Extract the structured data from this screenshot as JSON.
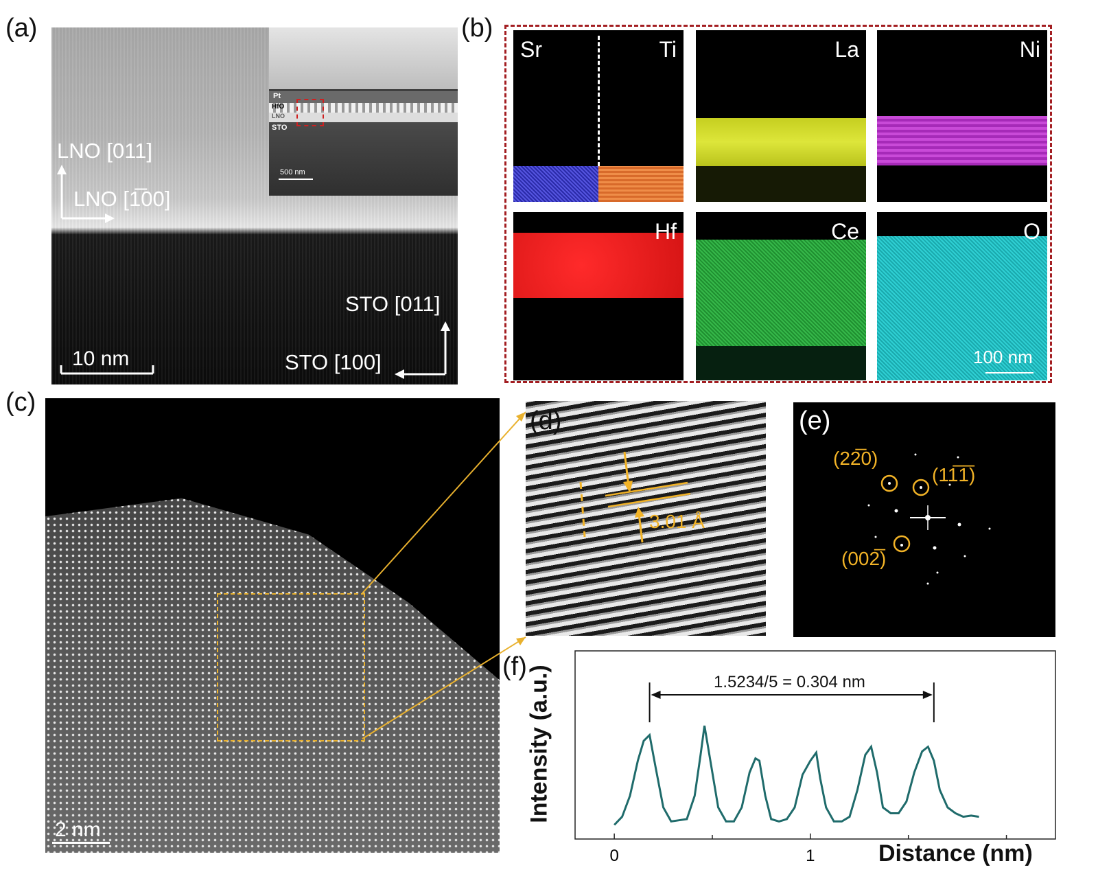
{
  "panels": {
    "a": {
      "letter": "(a)",
      "inset_labels": {
        "pt": "Pt",
        "hfo": "HfO",
        "lno": "LNO",
        "sto": "STO",
        "scalebar": "500 nm"
      },
      "axis_labels": {
        "lno_vertical": "LNO [011]",
        "lno_horizontal": "LNO [1̅00]",
        "sto_vertical": "STO [011]",
        "sto_horizontal": "STO [100]"
      },
      "scalebar": "10 nm"
    },
    "b": {
      "letter": "(b)",
      "maps": [
        {
          "element": "Sr",
          "color": "#3b3bd0"
        },
        {
          "element": "Ti",
          "color": "#e07a3a"
        },
        {
          "element": "La",
          "color": "#d8e22a"
        },
        {
          "element": "Ni",
          "color": "#c13bd0"
        },
        {
          "element": "Hf",
          "color": "#e51c1c"
        },
        {
          "element": "Ce",
          "color": "#22a83a"
        },
        {
          "element": "O",
          "color": "#21c2c6"
        }
      ],
      "scalebar": "100 nm",
      "border_color": "#a31e22"
    },
    "c": {
      "letter": "(c)",
      "scalebar": "2 nm",
      "box_color": "#e9b12e"
    },
    "d": {
      "letter": "(d)",
      "spacing": "3.01 Å"
    },
    "e": {
      "letter": "(e)",
      "spots": [
        "(22̅0)",
        "(11̅1̅)",
        "(002̅)"
      ]
    },
    "f": {
      "letter": "(f)"
    }
  },
  "chart_data": {
    "type": "line",
    "title": "",
    "xlabel": "Distance (nm)",
    "ylabel": "Intensity (a.u.)",
    "xlim": [
      -0.2,
      2.25
    ],
    "ylim": [
      0,
      1
    ],
    "xticks": [
      "0",
      "1"
    ],
    "annotation": "1.5234/5 = 0.304 nm",
    "series": [
      {
        "color": "#1f6b6b",
        "x": [
          0,
          0.04,
          0.08,
          0.12,
          0.15,
          0.18,
          0.21,
          0.25,
          0.29,
          0.33,
          0.37,
          0.41,
          0.44,
          0.46,
          0.49,
          0.53,
          0.57,
          0.61,
          0.65,
          0.69,
          0.72,
          0.74,
          0.77,
          0.8,
          0.84,
          0.88,
          0.92,
          0.96,
          1.0,
          1.03,
          1.05,
          1.08,
          1.12,
          1.16,
          1.2,
          1.24,
          1.28,
          1.31,
          1.34,
          1.37,
          1.41,
          1.45,
          1.49,
          1.53,
          1.57,
          1.6,
          1.63,
          1.66,
          1.7,
          1.74,
          1.78,
          1.82,
          1.86
        ],
        "y": [
          0.05,
          0.12,
          0.3,
          0.6,
          0.77,
          0.82,
          0.55,
          0.2,
          0.08,
          0.09,
          0.1,
          0.3,
          0.65,
          0.9,
          0.6,
          0.2,
          0.08,
          0.08,
          0.2,
          0.5,
          0.62,
          0.6,
          0.3,
          0.1,
          0.08,
          0.1,
          0.2,
          0.48,
          0.6,
          0.67,
          0.45,
          0.2,
          0.08,
          0.08,
          0.12,
          0.35,
          0.65,
          0.72,
          0.5,
          0.2,
          0.15,
          0.15,
          0.25,
          0.5,
          0.68,
          0.72,
          0.6,
          0.35,
          0.2,
          0.15,
          0.12,
          0.13,
          0.12
        ]
      }
    ]
  }
}
